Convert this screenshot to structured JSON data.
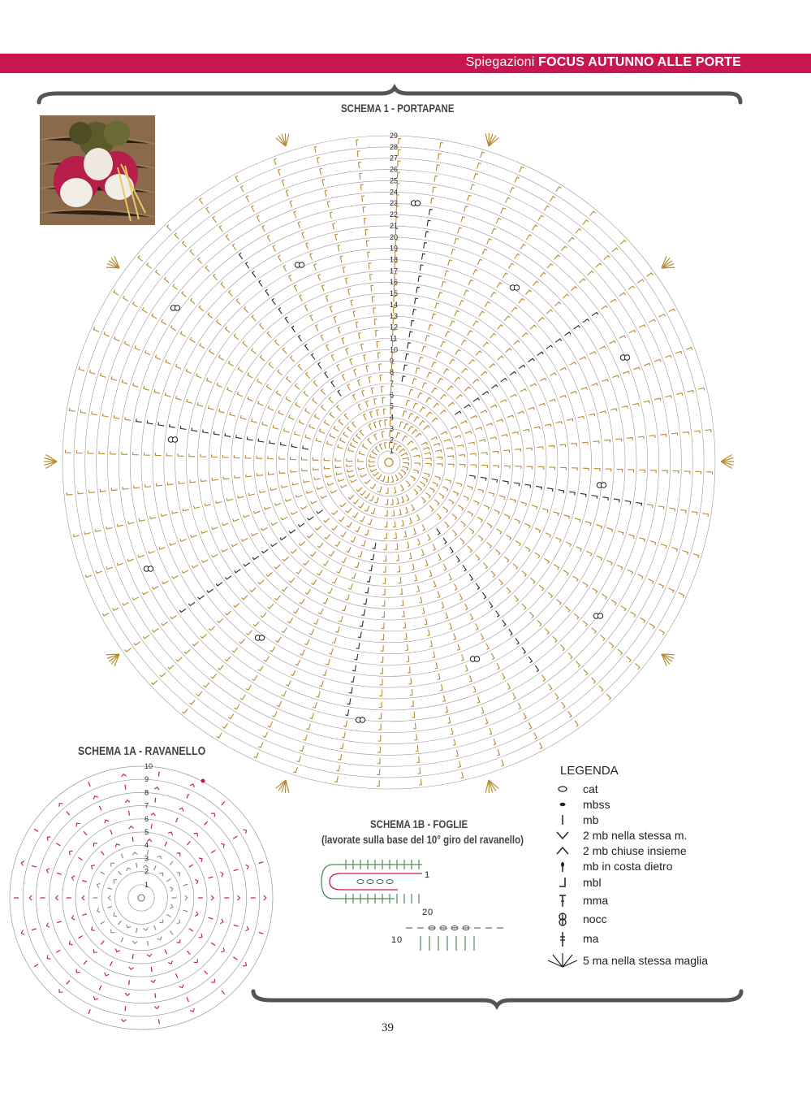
{
  "header": {
    "prefix": "Spiegazioni",
    "title": "FOCUS AUTUNNO ALLE PORTE",
    "band_color": "#c8174f"
  },
  "schemas": {
    "main_title": "SCHEMA 1 - PORTAPANE",
    "radish_title": "SCHEMA 1A - RAVANELLO",
    "leaves_title": "SCHEMA 1B - FOGLIE",
    "leaves_subtitle": "(lavorate sulla base del 10° giro del ravanello)",
    "main_round_labels": [
      "1",
      "2",
      "3",
      "4",
      "5",
      "6",
      "7",
      "8",
      "9",
      "10",
      "11",
      "12",
      "13",
      "14",
      "15",
      "16",
      "17",
      "18",
      "19",
      "20",
      "21",
      "22",
      "23",
      "24",
      "25",
      "26",
      "27",
      "28",
      "29"
    ],
    "radish_round_labels": [
      "1",
      "2",
      "3",
      "4",
      "5",
      "6",
      "7",
      "8",
      "9",
      "10"
    ],
    "leaves_labels": [
      "1",
      "2",
      "0",
      "1",
      "0"
    ],
    "colors": {
      "gold": "#b98a2e",
      "dark": "#2a2a2a",
      "magenta": "#c8174f",
      "green": "#4f8a5a",
      "grey": "#888888",
      "ring": "#9a9a9a"
    }
  },
  "legend": {
    "title": "LEGENDA",
    "items": [
      {
        "icon": "oval-cat-icon",
        "label": "cat"
      },
      {
        "icon": "dot-mbss-icon",
        "label": "mbss"
      },
      {
        "icon": "bar-mb-icon",
        "label": "mb"
      },
      {
        "icon": "v-two-mb-icon",
        "label": "2 mb nella stessa m."
      },
      {
        "icon": "caret-two-mb-closed-icon",
        "label": "2 mb chiuse insieme"
      },
      {
        "icon": "arrow-mb-costa-icon",
        "label": "mb in costa dietro"
      },
      {
        "icon": "hook-mbl-icon",
        "label": "mbl"
      },
      {
        "icon": "t-mma-icon",
        "label": "mma"
      },
      {
        "icon": "knot-nocc-icon",
        "label": "nocc"
      },
      {
        "icon": "dagger-ma-icon",
        "label": "ma"
      },
      {
        "icon": "fan-five-ma-icon",
        "label": "5 ma nella stessa maglia"
      }
    ]
  },
  "page_number": "39"
}
